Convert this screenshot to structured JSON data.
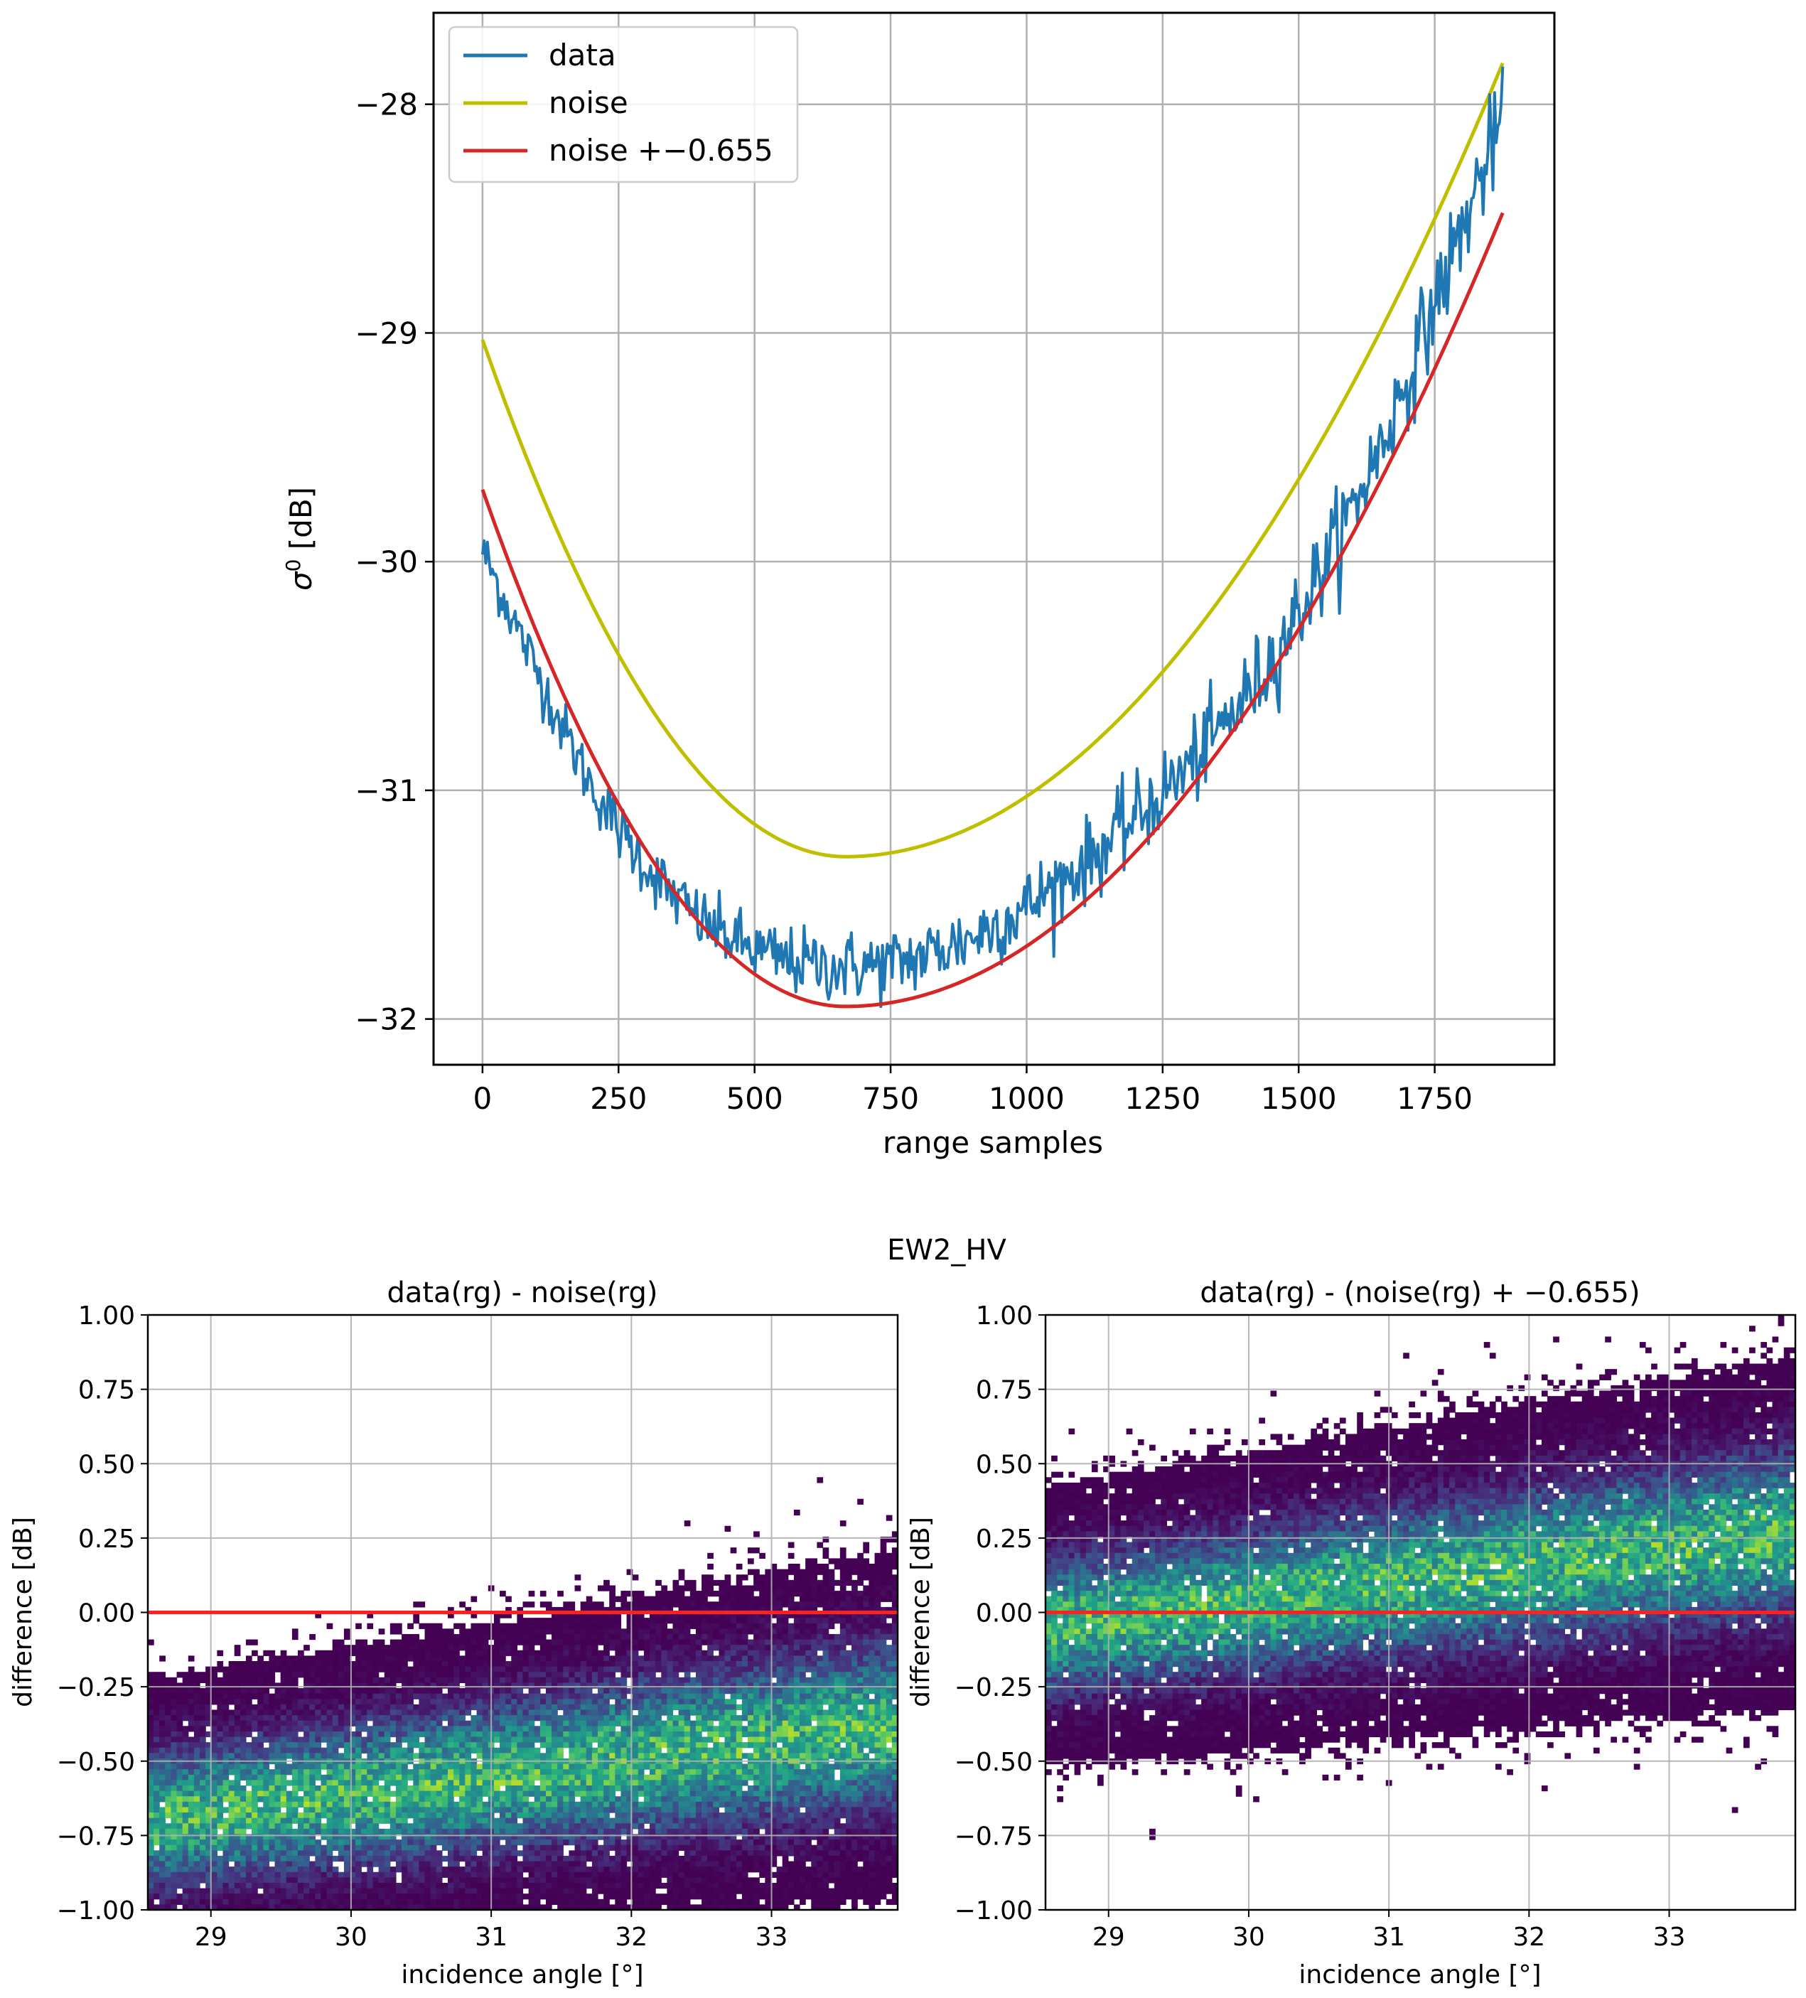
{
  "chart_data": [
    {
      "type": "line",
      "xlabel": "range samples",
      "ylabel": "σ0 [dB]",
      "xlim": [
        -90,
        1970
      ],
      "ylim": [
        -32.2,
        -27.6
      ],
      "xticks": [
        0,
        250,
        500,
        750,
        1000,
        1250,
        1500,
        1750
      ],
      "xtick_labels": [
        "0",
        "250",
        "500",
        "750",
        "1000",
        "1250",
        "1500",
        "1750"
      ],
      "yticks": [
        -32,
        -31,
        -30,
        -29,
        -28
      ],
      "ytick_labels": [
        "−32",
        "−31",
        "−30",
        "−29",
        "−28"
      ],
      "grid": true,
      "legend_position": "upper-left",
      "series": [
        {
          "name": "data",
          "label": "data",
          "color": "#1f77b4",
          "x": [
            0,
            50,
            100,
            150,
            200,
            250,
            300,
            350,
            400,
            450,
            500,
            550,
            600,
            650,
            700,
            750,
            800,
            850,
            900,
            950,
            1000,
            1050,
            1100,
            1150,
            1200,
            1250,
            1300,
            1350,
            1400,
            1450,
            1500,
            1550,
            1600,
            1650,
            1700,
            1750,
            1800,
            1850,
            1875
          ],
          "values": [
            -29.95,
            -30.22,
            -30.48,
            -30.74,
            -30.98,
            -31.17,
            -31.33,
            -31.46,
            -31.57,
            -31.64,
            -31.7,
            -31.74,
            -31.76,
            -31.77,
            -31.77,
            -31.76,
            -31.73,
            -31.69,
            -31.64,
            -31.58,
            -31.51,
            -31.42,
            -31.33,
            -31.23,
            -31.12,
            -31.01,
            -30.89,
            -30.75,
            -30.6,
            -30.43,
            -30.22,
            -30.0,
            -29.76,
            -29.5,
            -29.2,
            -28.87,
            -28.55,
            -28.22,
            -28.05
          ]
        },
        {
          "name": "noise",
          "label": "noise",
          "color": "#bfbf00",
          "x": [
            0,
            1875
          ],
          "vertex_x": 667,
          "values": [
            -29.03,
            -27.82
          ],
          "min": -31.29
        },
        {
          "name": "noise_offset",
          "label": "noise +−0.655",
          "color": "#d62728",
          "x": [
            0,
            1875
          ],
          "vertex_x": 667,
          "values": [
            -29.685,
            -28.475
          ],
          "min": -31.945
        }
      ]
    },
    {
      "type": "heatmap",
      "title": "data(rg) - noise(rg)",
      "xlabel": "incidence angle [°]",
      "ylabel": "difference [dB]",
      "xlim": [
        28.55,
        33.9
      ],
      "ylim": [
        -1.0,
        1.0
      ],
      "xticks": [
        29,
        30,
        31,
        32,
        33
      ],
      "xtick_labels": [
        "29",
        "30",
        "31",
        "32",
        "33"
      ],
      "yticks": [
        -1.0,
        -0.75,
        -0.5,
        -0.25,
        0.0,
        0.25,
        0.5,
        0.75,
        1.0
      ],
      "ytick_labels": [
        "−1.00",
        "−0.75",
        "−0.50",
        "−0.25",
        "0.00",
        "0.25",
        "0.50",
        "0.75",
        "1.00"
      ],
      "trend": {
        "x": [
          28.55,
          33.9
        ],
        "center": [
          -0.7,
          -0.38
        ]
      },
      "reference_line_y": 0.0,
      "colormap": "viridis",
      "grid": true
    },
    {
      "type": "heatmap",
      "title": "data(rg) - (noise(rg) + −0.655)",
      "xlabel": "incidence angle [°]",
      "ylabel": "difference [dB]",
      "xlim": [
        28.55,
        33.9
      ],
      "ylim": [
        -1.0,
        1.0
      ],
      "xticks": [
        29,
        30,
        31,
        32,
        33
      ],
      "xtick_labels": [
        "29",
        "30",
        "31",
        "32",
        "33"
      ],
      "yticks": [
        -1.0,
        -0.75,
        -0.5,
        -0.25,
        0.0,
        0.25,
        0.5,
        0.75,
        1.0
      ],
      "ytick_labels": [
        "−1.00",
        "−0.75",
        "−0.50",
        "−0.25",
        "0.00",
        "0.25",
        "0.50",
        "0.75",
        "1.00"
      ],
      "trend": {
        "x": [
          28.55,
          33.9
        ],
        "center": [
          -0.05,
          0.27
        ]
      },
      "reference_line_y": 0.0,
      "colormap": "viridis",
      "grid": true
    }
  ],
  "suptitle": "EW2_HV",
  "colors": {
    "data": "#1f77b4",
    "noise": "#bfbf00",
    "noise_offset": "#d62728",
    "zero_line": "#ff2020",
    "grid": "#b0b0b0"
  }
}
